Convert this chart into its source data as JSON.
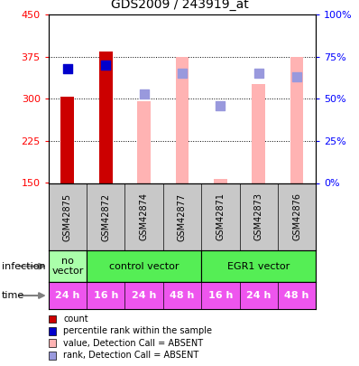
{
  "title": "GDS2009 / 243919_at",
  "samples": [
    "GSM42875",
    "GSM42872",
    "GSM42874",
    "GSM42877",
    "GSM42871",
    "GSM42873",
    "GSM42876"
  ],
  "bar_values": [
    304,
    385,
    296,
    374,
    158,
    327,
    374
  ],
  "bar_colors": [
    "#cc0000",
    "#cc0000",
    "#ffb3b3",
    "#ffb3b3",
    "#ffb3b3",
    "#ffb3b3",
    "#ffb3b3"
  ],
  "rank_values_pct": [
    68,
    70,
    53,
    65,
    46,
    65,
    63
  ],
  "rank_colors": [
    "#0000cc",
    "#0000cc",
    "#9999dd",
    "#9999dd",
    "#9999dd",
    "#9999dd",
    "#9999dd"
  ],
  "ylim_left": [
    150,
    450
  ],
  "ylim_right": [
    0,
    100
  ],
  "yticks_left": [
    150,
    225,
    300,
    375,
    450
  ],
  "yticks_right": [
    0,
    25,
    50,
    75,
    100
  ],
  "ytick_labels_right": [
    "0%",
    "25%",
    "50%",
    "75%",
    "100%"
  ],
  "infection_groups": [
    {
      "label": "no\nvector",
      "start": 0,
      "end": 1,
      "color": "#aaffaa"
    },
    {
      "label": "control vector",
      "start": 1,
      "end": 4,
      "color": "#55ee55"
    },
    {
      "label": "EGR1 vector",
      "start": 4,
      "end": 7,
      "color": "#55ee55"
    }
  ],
  "time_labels": [
    "24 h",
    "16 h",
    "24 h",
    "48 h",
    "16 h",
    "24 h",
    "48 h"
  ],
  "time_color": "#ee55ee",
  "legend_items": [
    {
      "label": "count",
      "color": "#cc0000"
    },
    {
      "label": "percentile rank within the sample",
      "color": "#0000cc"
    },
    {
      "label": "value, Detection Call = ABSENT",
      "color": "#ffb3b3"
    },
    {
      "label": "rank, Detection Call = ABSENT",
      "color": "#9999dd"
    }
  ],
  "bar_width": 0.35,
  "rank_marker_size": 45
}
